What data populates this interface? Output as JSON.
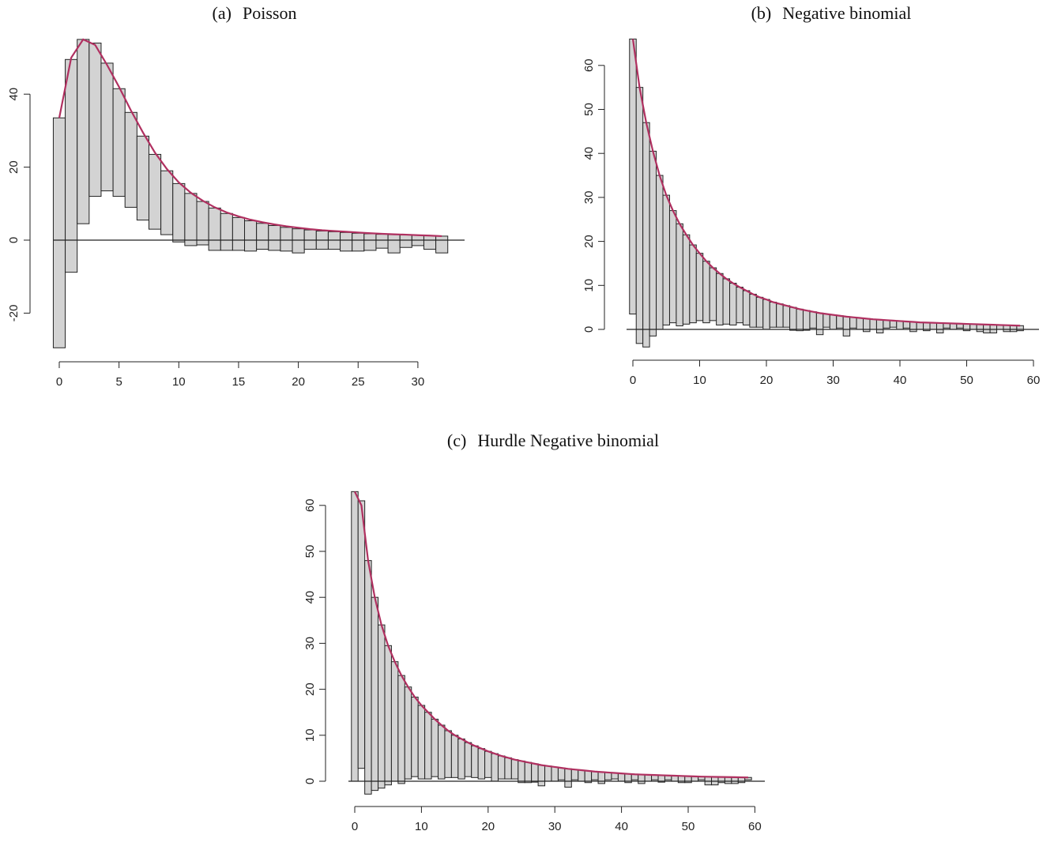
{
  "style": {
    "bar_fill": "#d3d3d3",
    "bar_stroke": "#222222",
    "curve_color": "#b03060",
    "axis_color": "#222222"
  },
  "chart_data": [
    {
      "type": "bar",
      "subtype": "hanging rootogram",
      "panel_label": "(a)",
      "title": "Poisson",
      "xlabel": "",
      "ylabel": "",
      "xlim": [
        0,
        32
      ],
      "ylim": [
        -30,
        55
      ],
      "xticks": [
        0,
        5,
        10,
        15,
        20,
        25,
        30
      ],
      "yticks": [
        -20,
        0,
        20,
        40
      ],
      "x": [
        0,
        1,
        2,
        3,
        4,
        5,
        6,
        7,
        8,
        9,
        10,
        11,
        12,
        13,
        14,
        15,
        16,
        17,
        18,
        19,
        20,
        21,
        22,
        23,
        24,
        25,
        26,
        27,
        28,
        29,
        30,
        31,
        32
      ],
      "bar_top": [
        33.5,
        49.5,
        55,
        54,
        48.5,
        41.5,
        35,
        28.5,
        23.5,
        19,
        15.5,
        12.8,
        10.6,
        8.8,
        7.3,
        6.2,
        5.3,
        4.6,
        4.0,
        3.5,
        3.1,
        2.8,
        2.5,
        2.3,
        2.1,
        1.9,
        1.75,
        1.6,
        1.5,
        1.4,
        1.3,
        1.2,
        1.1
      ],
      "bar_bottom": [
        -29.5,
        -8.8,
        4.5,
        12,
        13.5,
        12,
        9,
        5.5,
        3,
        1.5,
        -0.5,
        -1.5,
        -1.3,
        -2.8,
        -2.8,
        -2.8,
        -3.0,
        -2.5,
        -2.8,
        -3.0,
        -3.5,
        -2.5,
        -2.5,
        -2.5,
        -3.0,
        -3.0,
        -2.8,
        -2.2,
        -3.5,
        -2.0,
        -1.5,
        -2.5,
        -3.5
      ],
      "curve": [
        33.5,
        50,
        55,
        53.5,
        48,
        42,
        35.5,
        29.5,
        24,
        19.5,
        15.8,
        13,
        10.8,
        9,
        7.6,
        6.5,
        5.6,
        4.9,
        4.3,
        3.8,
        3.4,
        3.0,
        2.7,
        2.5,
        2.3,
        2.1,
        1.9,
        1.75,
        1.6,
        1.5,
        1.35,
        1.25,
        1.1
      ]
    },
    {
      "type": "bar",
      "subtype": "hanging rootogram",
      "panel_label": "(b)",
      "title": "Negative binomial",
      "xlabel": "",
      "ylabel": "",
      "xlim": [
        0,
        60
      ],
      "ylim": [
        -5,
        66
      ],
      "xticks": [
        0,
        10,
        20,
        30,
        40,
        50,
        60
      ],
      "yticks": [
        0,
        10,
        20,
        30,
        40,
        50,
        60
      ],
      "x": [
        0,
        1,
        2,
        3,
        4,
        5,
        6,
        7,
        8,
        9,
        10,
        11,
        12,
        13,
        14,
        15,
        16,
        17,
        18,
        19,
        20,
        21,
        22,
        23,
        24,
        25,
        26,
        27,
        28,
        29,
        30,
        31,
        32,
        33,
        34,
        35,
        36,
        37,
        38,
        39,
        40,
        41,
        42,
        43,
        44,
        45,
        46,
        47,
        48,
        49,
        50,
        51,
        52,
        53,
        54,
        55,
        56,
        57,
        58
      ],
      "bar_top": [
        66,
        55,
        47,
        40.5,
        35,
        30.5,
        27,
        24,
        21.5,
        19.2,
        17.3,
        15.5,
        14,
        12.7,
        11.5,
        10.5,
        9.6,
        8.8,
        8.0,
        7.3,
        6.8,
        6.2,
        5.8,
        5.4,
        5.0,
        4.6,
        4.3,
        4.0,
        3.7,
        3.5,
        3.3,
        3.1,
        2.9,
        2.75,
        2.6,
        2.45,
        2.3,
        2.2,
        2.1,
        2.0,
        1.9,
        1.8,
        1.7,
        1.6,
        1.55,
        1.5,
        1.45,
        1.4,
        1.35,
        1.3,
        1.25,
        1.2,
        1.15,
        1.1,
        1.05,
        1.0,
        0.95,
        0.9,
        0.85
      ],
      "bar_bottom": [
        3.5,
        -3.2,
        -4.0,
        -1.5,
        0.0,
        1.0,
        1.5,
        0.8,
        1.2,
        1.5,
        2.0,
        1.5,
        2.0,
        1.0,
        1.2,
        1.0,
        1.5,
        1.0,
        0.5,
        0.5,
        0.0,
        0.5,
        0.5,
        0.5,
        -0.2,
        -0.3,
        -0.2,
        0.3,
        -1.2,
        0.5,
        0.0,
        0.3,
        -1.5,
        0.3,
        0.0,
        -0.5,
        0.0,
        -0.8,
        0.3,
        0.5,
        0.0,
        0.3,
        -0.5,
        0.0,
        -0.3,
        0.0,
        -0.8,
        0.3,
        0.0,
        0.3,
        -0.3,
        0.0,
        -0.5,
        -0.8,
        -0.8,
        0.0,
        -0.5,
        -0.5,
        -0.3
      ],
      "curve": [
        66,
        55,
        47,
        40.5,
        35,
        30.5,
        27,
        24,
        21.5,
        19.2,
        17.3,
        15.5,
        14,
        12.7,
        11.5,
        10.5,
        9.6,
        8.8,
        8.0,
        7.3,
        6.8,
        6.2,
        5.8,
        5.4,
        5.0,
        4.6,
        4.3,
        4.0,
        3.7,
        3.5,
        3.3,
        3.1,
        2.9,
        2.75,
        2.6,
        2.45,
        2.3,
        2.2,
        2.1,
        2.0,
        1.9,
        1.8,
        1.7,
        1.6,
        1.55,
        1.5,
        1.45,
        1.4,
        1.35,
        1.3,
        1.25,
        1.2,
        1.15,
        1.1,
        1.05,
        1.0,
        0.95,
        0.9,
        0.85
      ]
    },
    {
      "type": "bar",
      "subtype": "hanging rootogram",
      "panel_label": "(c)",
      "title": "Hurdle Negative binomial",
      "xlabel": "",
      "ylabel": "",
      "xlim": [
        0,
        60
      ],
      "ylim": [
        -3,
        63
      ],
      "xticks": [
        0,
        10,
        20,
        30,
        40,
        50,
        60
      ],
      "yticks": [
        0,
        10,
        20,
        30,
        40,
        50,
        60
      ],
      "x": [
        0,
        1,
        2,
        3,
        4,
        5,
        6,
        7,
        8,
        9,
        10,
        11,
        12,
        13,
        14,
        15,
        16,
        17,
        18,
        19,
        20,
        21,
        22,
        23,
        24,
        25,
        26,
        27,
        28,
        29,
        30,
        31,
        32,
        33,
        34,
        35,
        36,
        37,
        38,
        39,
        40,
        41,
        42,
        43,
        44,
        45,
        46,
        47,
        48,
        49,
        50,
        51,
        52,
        53,
        54,
        55,
        56,
        57,
        58,
        59
      ],
      "bar_top": [
        63,
        61,
        48,
        40,
        34,
        29.5,
        26,
        23,
        20.5,
        18.3,
        16.5,
        15,
        13.5,
        12.2,
        11,
        10,
        9.2,
        8.4,
        7.7,
        7.1,
        6.5,
        6.0,
        5.5,
        5.1,
        4.7,
        4.4,
        4.1,
        3.8,
        3.5,
        3.3,
        3.1,
        2.9,
        2.7,
        2.55,
        2.4,
        2.25,
        2.1,
        2.0,
        1.9,
        1.8,
        1.7,
        1.6,
        1.5,
        1.45,
        1.4,
        1.35,
        1.3,
        1.25,
        1.2,
        1.15,
        1.1,
        1.05,
        1.0,
        0.98,
        0.95,
        0.93,
        0.9,
        0.88,
        0.85,
        0.82
      ],
      "bar_bottom": [
        0.0,
        2.8,
        -2.8,
        -2.0,
        -1.5,
        -0.8,
        0.0,
        -0.5,
        0.5,
        1.0,
        0.5,
        0.5,
        1.0,
        0.5,
        0.8,
        0.8,
        0.5,
        1.0,
        0.8,
        0.5,
        0.8,
        0.0,
        0.5,
        0.5,
        0.5,
        -0.3,
        -0.3,
        -0.2,
        -1.0,
        0.0,
        0.0,
        0.3,
        -1.3,
        0.3,
        0.0,
        -0.3,
        0.3,
        -0.5,
        0.3,
        0.5,
        0.0,
        -0.3,
        0.3,
        -0.5,
        0.0,
        0.3,
        -0.2,
        0.3,
        0.0,
        -0.3,
        -0.3,
        0.0,
        0.3,
        -0.8,
        -0.8,
        -0.3,
        -0.5,
        -0.5,
        -0.3,
        0.3
      ],
      "curve": [
        63,
        60,
        48,
        40,
        34,
        29.5,
        26,
        23,
        20.5,
        18.3,
        16.5,
        15,
        13.5,
        12.2,
        11,
        10,
        9.2,
        8.4,
        7.7,
        7.1,
        6.5,
        6.0,
        5.5,
        5.1,
        4.7,
        4.4,
        4.1,
        3.8,
        3.5,
        3.3,
        3.1,
        2.9,
        2.7,
        2.55,
        2.4,
        2.25,
        2.1,
        2.0,
        1.9,
        1.8,
        1.7,
        1.6,
        1.5,
        1.45,
        1.4,
        1.35,
        1.3,
        1.25,
        1.2,
        1.15,
        1.1,
        1.05,
        1.0,
        0.98,
        0.95,
        0.93,
        0.9,
        0.88,
        0.85,
        0.82
      ]
    }
  ]
}
